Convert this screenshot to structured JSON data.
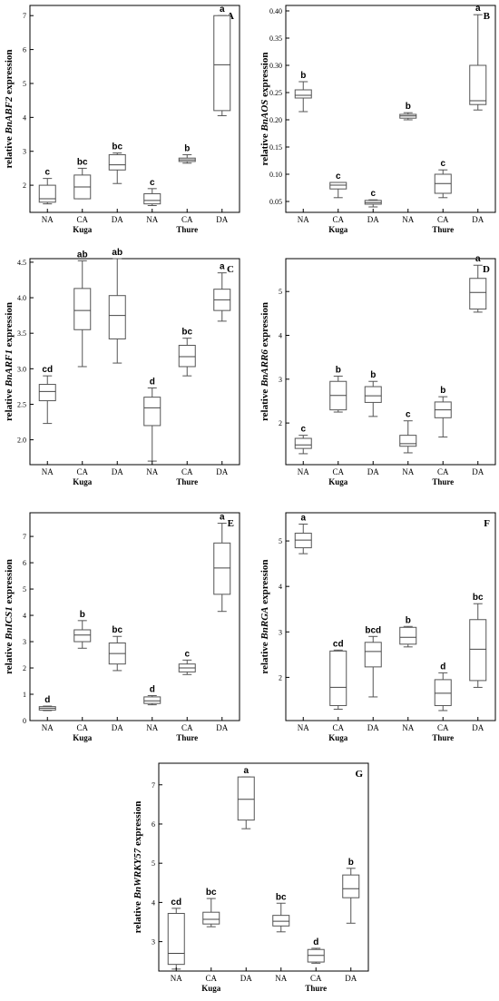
{
  "chart_data": [
    {
      "type": "boxplot",
      "panel_label": "A",
      "ylabel_prefix": "relative ",
      "ylabel_gene": "BnABF2",
      "ylabel_suffix": " expression",
      "yticks": [
        2,
        3,
        4,
        5,
        6,
        7
      ],
      "ylim": [
        1.2,
        7.3
      ],
      "categories": [
        "NA",
        "CA",
        "DA",
        "NA",
        "CA",
        "DA"
      ],
      "groups": [
        {
          "name": "Kuga",
          "span": [
            0,
            2
          ]
        },
        {
          "name": "Thure",
          "span": [
            3,
            5
          ]
        }
      ],
      "boxes": [
        {
          "min": 1.45,
          "q1": 1.5,
          "median": 1.6,
          "q3": 2.0,
          "max": 2.2,
          "letter": "c"
        },
        {
          "min": 1.6,
          "q1": 1.6,
          "median": 1.95,
          "q3": 2.3,
          "max": 2.5,
          "letter": "bc"
        },
        {
          "min": 2.05,
          "q1": 2.45,
          "median": 2.6,
          "q3": 2.9,
          "max": 2.95,
          "letter": "bc"
        },
        {
          "min": 1.4,
          "q1": 1.45,
          "median": 1.55,
          "q3": 1.75,
          "max": 1.9,
          "letter": "c"
        },
        {
          "min": 2.65,
          "q1": 2.7,
          "median": 2.75,
          "q3": 2.8,
          "max": 2.9,
          "letter": "b"
        },
        {
          "min": 4.05,
          "q1": 4.2,
          "median": 5.55,
          "q3": 7.0,
          "max": 7.0,
          "letter": "a"
        }
      ]
    },
    {
      "type": "boxplot",
      "panel_label": "B",
      "ylabel_prefix": "relative ",
      "ylabel_gene": "BnAOS",
      "ylabel_suffix": " expression",
      "yticks": [
        0.05,
        0.1,
        0.15,
        0.2,
        0.25,
        0.3,
        0.35,
        0.4
      ],
      "ytick_labels": [
        "0.05",
        "0.10",
        "0.15",
        "0.20",
        "0.25",
        "0.30",
        "0.35",
        "0.40"
      ],
      "ylim": [
        0.03,
        0.41
      ],
      "categories": [
        "NA",
        "CA",
        "DA",
        "NA",
        "CA",
        "DA"
      ],
      "groups": [
        {
          "name": "Kuga",
          "span": [
            0,
            2
          ]
        },
        {
          "name": "Thure",
          "span": [
            3,
            5
          ]
        }
      ],
      "boxes": [
        {
          "min": 0.215,
          "q1": 0.24,
          "median": 0.245,
          "q3": 0.255,
          "max": 0.27,
          "letter": "b"
        },
        {
          "min": 0.057,
          "q1": 0.073,
          "median": 0.08,
          "q3": 0.085,
          "max": 0.085,
          "letter": "c"
        },
        {
          "min": 0.04,
          "q1": 0.045,
          "median": 0.048,
          "q3": 0.052,
          "max": 0.053,
          "letter": "c"
        },
        {
          "min": 0.2,
          "q1": 0.203,
          "median": 0.207,
          "q3": 0.21,
          "max": 0.213,
          "letter": "b"
        },
        {
          "min": 0.057,
          "q1": 0.065,
          "median": 0.083,
          "q3": 0.1,
          "max": 0.108,
          "letter": "c"
        },
        {
          "min": 0.218,
          "q1": 0.228,
          "median": 0.235,
          "q3": 0.3,
          "max": 0.393,
          "letter": "a"
        }
      ]
    },
    {
      "type": "boxplot",
      "panel_label": "C",
      "ylabel_prefix": "relative ",
      "ylabel_gene": "BnARF1",
      "ylabel_suffix": " expression",
      "yticks": [
        2.0,
        2.5,
        3.0,
        3.5,
        4.0,
        4.5
      ],
      "ytick_labels": [
        "2.0",
        "2.5",
        "3.0",
        "3.5",
        "4.0",
        "4.5"
      ],
      "ylim": [
        1.65,
        4.55
      ],
      "categories": [
        "NA",
        "CA",
        "DA",
        "NA",
        "CA",
        "DA"
      ],
      "groups": [
        {
          "name": "Kuga",
          "span": [
            0,
            2
          ]
        },
        {
          "name": "Thure",
          "span": [
            3,
            5
          ]
        }
      ],
      "boxes": [
        {
          "min": 2.23,
          "q1": 2.55,
          "median": 2.68,
          "q3": 2.78,
          "max": 2.9,
          "letter": "cd"
        },
        {
          "min": 3.03,
          "q1": 3.55,
          "median": 3.82,
          "q3": 4.13,
          "max": 4.52,
          "letter": "ab"
        },
        {
          "min": 3.08,
          "q1": 3.42,
          "median": 3.75,
          "q3": 4.03,
          "max": 4.55,
          "letter": "ab"
        },
        {
          "min": 1.7,
          "q1": 2.2,
          "median": 2.45,
          "q3": 2.6,
          "max": 2.73,
          "letter": "d"
        },
        {
          "min": 2.9,
          "q1": 3.03,
          "median": 3.17,
          "q3": 3.33,
          "max": 3.43,
          "letter": "bc"
        },
        {
          "min": 3.67,
          "q1": 3.82,
          "median": 3.97,
          "q3": 4.12,
          "max": 4.35,
          "letter": "a"
        }
      ]
    },
    {
      "type": "boxplot",
      "panel_label": "D",
      "ylabel_prefix": "relative ",
      "ylabel_gene": "BnARR6",
      "ylabel_suffix": " expression",
      "yticks": [
        2,
        3,
        4,
        5
      ],
      "ylim": [
        1.05,
        5.75
      ],
      "categories": [
        "NA",
        "CA",
        "DA",
        "NA",
        "CA",
        "DA"
      ],
      "groups": [
        {
          "name": "Kuga",
          "span": [
            0,
            2
          ]
        },
        {
          "name": "Thure",
          "span": [
            3,
            5
          ]
        }
      ],
      "boxes": [
        {
          "min": 1.3,
          "q1": 1.42,
          "median": 1.5,
          "q3": 1.65,
          "max": 1.72,
          "letter": "c"
        },
        {
          "min": 2.25,
          "q1": 2.3,
          "median": 2.63,
          "q3": 2.95,
          "max": 3.07,
          "letter": "b"
        },
        {
          "min": 2.15,
          "q1": 2.47,
          "median": 2.62,
          "q3": 2.83,
          "max": 2.95,
          "letter": "b"
        },
        {
          "min": 1.32,
          "q1": 1.47,
          "median": 1.53,
          "q3": 1.72,
          "max": 2.05,
          "letter": "c"
        },
        {
          "min": 1.68,
          "q1": 2.12,
          "median": 2.3,
          "q3": 2.48,
          "max": 2.6,
          "letter": "b"
        },
        {
          "min": 4.53,
          "q1": 4.6,
          "median": 4.98,
          "q3": 5.3,
          "max": 5.6,
          "letter": "a"
        }
      ]
    },
    {
      "type": "boxplot",
      "panel_label": "E",
      "ylabel_prefix": "relative ",
      "ylabel_gene": "BnICS1",
      "ylabel_suffix": " expression",
      "yticks": [
        0,
        1,
        2,
        3,
        4,
        5,
        6,
        7
      ],
      "ylim": [
        0,
        7.9
      ],
      "categories": [
        "NA",
        "CA",
        "DA",
        "NA",
        "CA",
        "DA"
      ],
      "groups": [
        {
          "name": "Kuga",
          "span": [
            0,
            2
          ]
        },
        {
          "name": "Thure",
          "span": [
            3,
            5
          ]
        }
      ],
      "boxes": [
        {
          "min": 0.38,
          "q1": 0.4,
          "median": 0.47,
          "q3": 0.53,
          "max": 0.55,
          "letter": "d"
        },
        {
          "min": 2.75,
          "q1": 3.0,
          "median": 3.25,
          "q3": 3.45,
          "max": 3.8,
          "letter": "b"
        },
        {
          "min": 1.9,
          "q1": 2.15,
          "median": 2.55,
          "q3": 2.95,
          "max": 3.2,
          "letter": "bc"
        },
        {
          "min": 0.6,
          "q1": 0.65,
          "median": 0.75,
          "q3": 0.9,
          "max": 0.95,
          "letter": "d"
        },
        {
          "min": 1.75,
          "q1": 1.85,
          "median": 2.0,
          "q3": 2.15,
          "max": 2.3,
          "letter": "c"
        },
        {
          "min": 4.15,
          "q1": 4.8,
          "median": 5.8,
          "q3": 6.75,
          "max": 7.5,
          "letter": "a"
        }
      ]
    },
    {
      "type": "boxplot",
      "panel_label": "F",
      "ylabel_prefix": "relative ",
      "ylabel_gene": "BnRGA",
      "ylabel_suffix": " expression",
      "yticks": [
        2,
        3,
        4,
        5
      ],
      "ylim": [
        1.05,
        5.62
      ],
      "categories": [
        "NA",
        "CA",
        "DA",
        "NA",
        "CA",
        "DA"
      ],
      "groups": [
        {
          "name": "Kuga",
          "span": [
            0,
            2
          ]
        },
        {
          "name": "Thure",
          "span": [
            3,
            5
          ]
        }
      ],
      "boxes": [
        {
          "min": 4.72,
          "q1": 4.85,
          "median": 5.02,
          "q3": 5.17,
          "max": 5.37,
          "letter": "a"
        },
        {
          "min": 1.3,
          "q1": 1.38,
          "median": 1.78,
          "q3": 2.58,
          "max": 2.6,
          "letter": "cd"
        },
        {
          "min": 1.57,
          "q1": 2.23,
          "median": 2.57,
          "q3": 2.77,
          "max": 2.9,
          "letter": "bcd"
        },
        {
          "min": 2.67,
          "q1": 2.73,
          "median": 2.88,
          "q3": 3.1,
          "max": 3.12,
          "letter": "b"
        },
        {
          "min": 1.27,
          "q1": 1.38,
          "median": 1.65,
          "q3": 1.95,
          "max": 2.1,
          "letter": "d"
        },
        {
          "min": 1.78,
          "q1": 1.93,
          "median": 2.62,
          "q3": 3.27,
          "max": 3.62,
          "letter": "bc"
        }
      ]
    },
    {
      "type": "boxplot",
      "panel_label": "G",
      "ylabel_prefix": "relative ",
      "ylabel_gene": "BnWRKY57",
      "ylabel_suffix": " expression",
      "yticks": [
        3,
        4,
        5,
        6,
        7
      ],
      "ylim": [
        2.25,
        7.55
      ],
      "categories": [
        "NA",
        "CA",
        "DA",
        "NA",
        "CA",
        "DA"
      ],
      "groups": [
        {
          "name": "Kuga",
          "span": [
            0,
            2
          ]
        },
        {
          "name": "Thure",
          "span": [
            3,
            5
          ]
        }
      ],
      "boxes": [
        {
          "min": 2.3,
          "q1": 2.42,
          "median": 2.7,
          "q3": 3.72,
          "max": 3.85,
          "letter": "cd"
        },
        {
          "min": 3.38,
          "q1": 3.45,
          "median": 3.57,
          "q3": 3.75,
          "max": 4.1,
          "letter": "bc"
        },
        {
          "min": 5.88,
          "q1": 6.1,
          "median": 6.63,
          "q3": 7.2,
          "max": 7.2,
          "letter": "a"
        },
        {
          "min": 3.25,
          "q1": 3.4,
          "median": 3.52,
          "q3": 3.67,
          "max": 3.98,
          "letter": "bc"
        },
        {
          "min": 2.45,
          "q1": 2.48,
          "median": 2.65,
          "q3": 2.8,
          "max": 2.83,
          "letter": "d"
        },
        {
          "min": 3.47,
          "q1": 4.12,
          "median": 4.35,
          "q3": 4.7,
          "max": 4.87,
          "letter": "b"
        }
      ]
    }
  ]
}
